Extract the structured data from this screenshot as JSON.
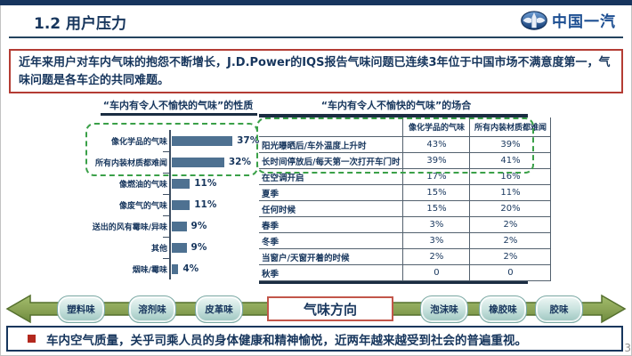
{
  "slide": {
    "title": "1.2 用户压力",
    "logo_text": "中国一汽",
    "page_number": "3"
  },
  "intro_box": {
    "text": "近年来用户对车内气味的抱怨不断增长，J.D.Power的IQS报告气味问题已连续3年位于中国市场不满意度第一，气味问题是各车企的共同难题。"
  },
  "chart_data": [
    {
      "type": "bar",
      "orientation": "horizontal",
      "title": "“车内有令人不愉快的气味”的性质",
      "categories": [
        "像化学品的气味",
        "所有内装材质都难闻",
        "像燃油的气味",
        "像废气的气味",
        "送出的风有霉味/异味",
        "其他",
        "烟味/霉味"
      ],
      "values": [
        37,
        32,
        11,
        11,
        9,
        9,
        4
      ],
      "value_labels": [
        "37%",
        "32%",
        "11%",
        "11%",
        "9%",
        "9%",
        "4%"
      ],
      "unit": "%",
      "xlim": [
        0,
        40
      ],
      "bar_color": "#4e7191",
      "highlight_note": "first two bars enclosed in green dashed box"
    },
    {
      "type": "table",
      "title": "“车内有令人不愉快的气味”的场合",
      "columns": [
        "",
        "像化学品的气味",
        "所有内装材质都难闻"
      ],
      "rows": [
        [
          "阳光曝晒后/车外温度上升时",
          "43%",
          "39%"
        ],
        [
          "长时间停放后/每天第一次打开车门时",
          "39%",
          "41%"
        ],
        [
          "在空调开启",
          "17%",
          "16%"
        ],
        [
          "夏季",
          "15%",
          "11%"
        ],
        [
          "任何时候",
          "15%",
          "20%"
        ],
        [
          "春季",
          "3%",
          "2%"
        ],
        [
          "冬季",
          "3%",
          "2%"
        ],
        [
          "当窗户/天窗开着的时候",
          "2%",
          "2%"
        ],
        [
          "秋季",
          "0",
          "0"
        ]
      ],
      "highlight_note": "header row and first two data rows enclosed in green dashed box"
    }
  ],
  "odor_axis": {
    "center_label": "气味方向",
    "left_items": [
      "塑料味",
      "溶剂味",
      "皮革味"
    ],
    "right_items": [
      "泡沫味",
      "橡胶味",
      "胶味"
    ]
  },
  "footer_box": {
    "text": "车内空气质量，关乎司乘人员的身体健康和精神愉悦，近两年越来越受到社会的普遍重视。"
  },
  "colors": {
    "navy_text": "#17365d",
    "top_strip": "#17355e",
    "intro_border": "#b43c34",
    "bar_fill": "#4e7191",
    "dashed_green": "#3aa048",
    "arrow_fill": "#8ca557",
    "arrow_edge": "#55702e",
    "tag_fill": "#bcdad5",
    "direction_border": "#c2564a",
    "footer_border": "#17365d",
    "bullet_red": "#b3281e",
    "logo_blue": "#1d4f92"
  }
}
